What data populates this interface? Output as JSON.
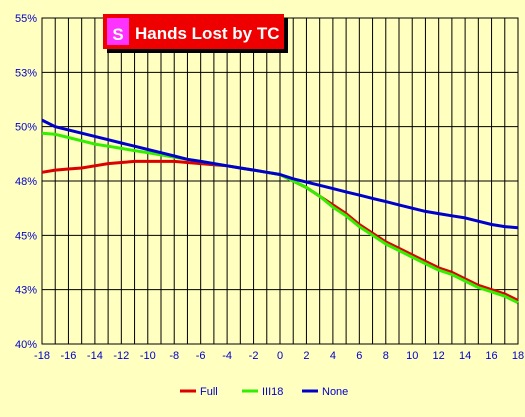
{
  "chart_data": {
    "type": "line",
    "title": "Hands Lost by TC",
    "xlabel": "",
    "ylabel": "",
    "xlim": [
      -18,
      18
    ],
    "ylim": [
      40,
      55
    ],
    "x_ticks": [
      -18,
      -16,
      -14,
      -12,
      -10,
      -8,
      -6,
      -4,
      -2,
      0,
      2,
      4,
      6,
      8,
      10,
      12,
      14,
      16,
      18
    ],
    "y_ticks": [
      40,
      42.5,
      45,
      47.5,
      50,
      52.5,
      55
    ],
    "y_tick_labels": [
      "40%",
      "43%",
      "45%",
      "48%",
      "50%",
      "53%",
      "55%"
    ],
    "grid": true,
    "legend_position": "bottom",
    "x": [
      -18,
      -17,
      -16,
      -15,
      -14,
      -13,
      -12,
      -11,
      -10,
      -9,
      -8,
      -7,
      -6,
      -5,
      -4,
      -3,
      -2,
      -1,
      0,
      1,
      2,
      3,
      4,
      5,
      6,
      7,
      8,
      9,
      10,
      11,
      12,
      13,
      14,
      15,
      16,
      17,
      18
    ],
    "series": [
      {
        "name": "Full",
        "color": "#dd0000",
        "values": [
          47.9,
          48.0,
          48.05,
          48.1,
          48.2,
          48.3,
          48.35,
          48.4,
          48.4,
          48.4,
          48.4,
          48.35,
          48.3,
          48.25,
          48.2,
          48.1,
          48.0,
          47.9,
          47.8,
          47.5,
          47.2,
          46.8,
          46.4,
          46.0,
          45.5,
          45.1,
          44.7,
          44.4,
          44.1,
          43.8,
          43.5,
          43.3,
          43.0,
          42.7,
          42.5,
          42.3,
          42.0
        ]
      },
      {
        "name": "III18",
        "color": "#33ee00",
        "values": [
          49.7,
          49.65,
          49.5,
          49.35,
          49.2,
          49.1,
          49.0,
          48.9,
          48.8,
          48.7,
          48.6,
          48.5,
          48.4,
          48.3,
          48.2,
          48.1,
          48.0,
          47.9,
          47.8,
          47.5,
          47.2,
          46.8,
          46.3,
          45.9,
          45.4,
          45.0,
          44.6,
          44.3,
          44.0,
          43.7,
          43.4,
          43.2,
          42.9,
          42.6,
          42.4,
          42.2,
          41.9
        ]
      },
      {
        "name": "None",
        "color": "#0000cc",
        "values": [
          50.3,
          50.0,
          49.85,
          49.7,
          49.55,
          49.4,
          49.25,
          49.1,
          48.95,
          48.8,
          48.65,
          48.5,
          48.4,
          48.3,
          48.2,
          48.1,
          48.0,
          47.9,
          47.8,
          47.6,
          47.45,
          47.3,
          47.15,
          47.0,
          46.85,
          46.7,
          46.55,
          46.4,
          46.25,
          46.1,
          46.0,
          45.9,
          45.8,
          45.65,
          45.5,
          45.4,
          45.35
        ]
      }
    ]
  }
}
